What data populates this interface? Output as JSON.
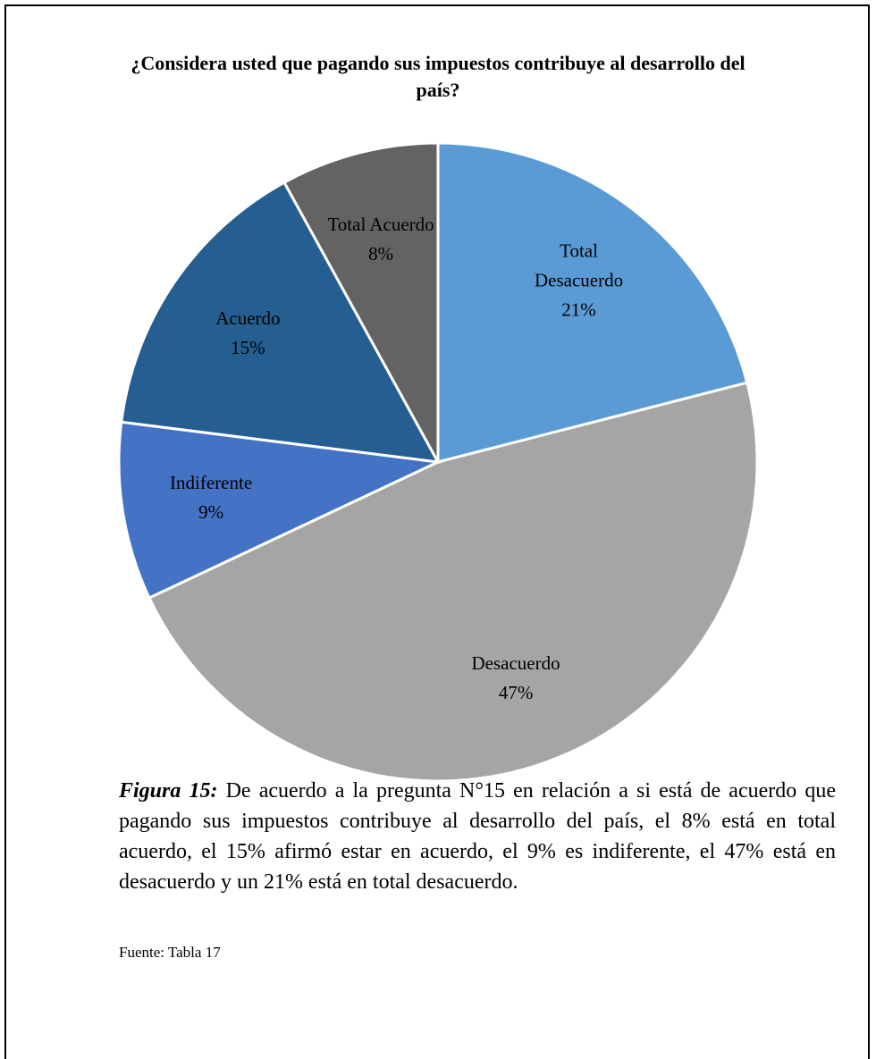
{
  "chart_data": {
    "type": "pie",
    "title": "¿Considera usted que pagando sus impuestos contribuye al desarrollo del país?",
    "categories": [
      "Total Desacuerdo",
      "Desacuerdo",
      "Indiferente",
      "Acuerdo",
      "Total Acuerdo"
    ],
    "values": [
      21,
      47,
      9,
      15,
      8
    ],
    "value_labels": [
      "21%",
      "47%",
      "9%",
      "15%",
      "8%"
    ],
    "colors": [
      "#5b9bd5",
      "#a5a5a5",
      "#4472c4",
      "#255e91",
      "#636363"
    ]
  },
  "caption": {
    "label": "Figura 15:",
    "text": "De acuerdo a la pregunta N°15 en relación a si está de acuerdo que pagando sus impuestos contribuye al desarrollo del país, el 8% está en total acuerdo, el 15% afirmó estar en acuerdo, el 9% es indiferente, el 47% está en desacuerdo y un 21% está en total desacuerdo."
  },
  "source": "Fuente: Tabla 17"
}
